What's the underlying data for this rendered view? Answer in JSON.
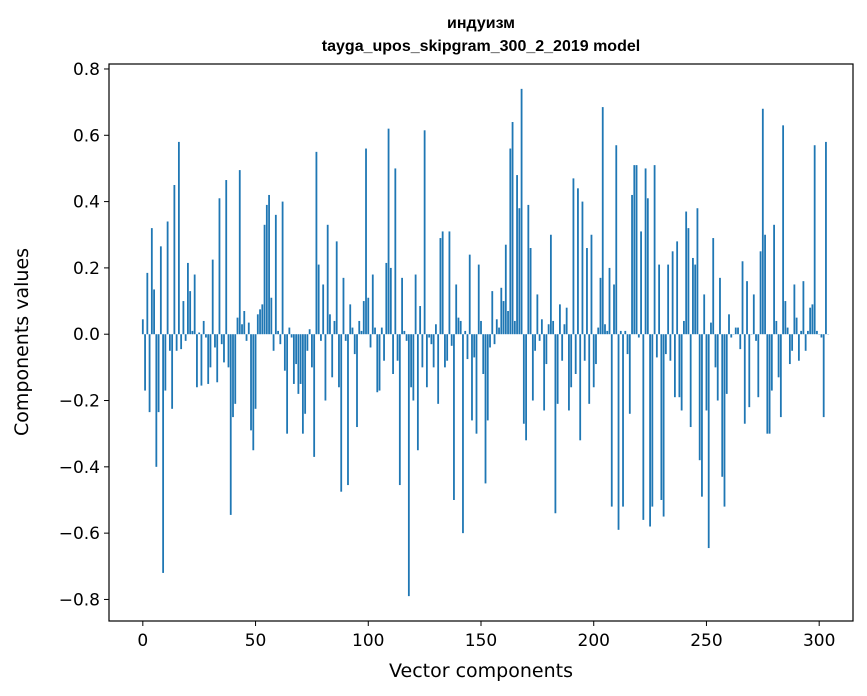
{
  "chart_data": {
    "type": "bar",
    "title": "индуизм",
    "subtitle": "tayga_upos_skipgram_300_2_2019 model",
    "xlabel": "Vector components",
    "ylabel": "Components values",
    "xlim": [
      -15,
      315
    ],
    "ylim": [
      -0.865,
      0.815
    ],
    "xticks": [
      0,
      50,
      100,
      150,
      200,
      250,
      300
    ],
    "xtick_labels": [
      "0",
      "50",
      "100",
      "150",
      "200",
      "250",
      "300"
    ],
    "yticks": [
      -0.8,
      -0.6,
      -0.4,
      -0.2,
      0.0,
      0.2,
      0.4,
      0.6,
      0.8
    ],
    "ytick_labels": [
      "−0.8",
      "−0.6",
      "−0.4",
      "−0.2",
      "0.0",
      "0.2",
      "0.4",
      "0.6",
      "0.8"
    ],
    "bar_color": "#1f77b4",
    "grid": false,
    "values": [
      0.045,
      -0.17,
      0.185,
      -0.235,
      0.32,
      0.135,
      -0.4,
      -0.235,
      0.265,
      -0.72,
      -0.17,
      0.34,
      -0.05,
      -0.225,
      0.45,
      -0.05,
      0.58,
      -0.045,
      0.1,
      -0.02,
      0.215,
      0.13,
      0.01,
      0.18,
      -0.16,
      0.005,
      -0.155,
      0.04,
      -0.01,
      -0.15,
      -0.1,
      0.225,
      -0.04,
      -0.145,
      0.41,
      -0.03,
      -0.085,
      0.465,
      -0.1,
      -0.545,
      -0.25,
      -0.21,
      0.05,
      0.495,
      0.03,
      0.07,
      -0.02,
      0.035,
      -0.29,
      -0.35,
      -0.225,
      0.06,
      0.075,
      0.09,
      0.33,
      0.39,
      0.42,
      0.11,
      -0.05,
      0.36,
      0.01,
      -0.03,
      0.4,
      -0.11,
      -0.3,
      0.02,
      -0.01,
      -0.15,
      -0.09,
      -0.18,
      -0.15,
      -0.3,
      -0.24,
      -0.05,
      0.015,
      -0.1,
      -0.37,
      0.55,
      0.21,
      -0.02,
      0.15,
      -0.2,
      0.33,
      0.06,
      -0.13,
      0.04,
      0.28,
      -0.16,
      -0.475,
      0.17,
      -0.02,
      -0.455,
      0.09,
      0.02,
      -0.06,
      -0.28,
      0.04,
      0.01,
      0.1,
      0.56,
      0.11,
      -0.04,
      0.18,
      0.02,
      -0.175,
      -0.17,
      0.02,
      -0.08,
      0.215,
      0.62,
      0.2,
      -0.12,
      0.5,
      -0.08,
      -0.455,
      0.17,
      0.01,
      -0.02,
      -0.79,
      -0.16,
      -0.2,
      0.18,
      -0.35,
      0.085,
      -0.1,
      0.615,
      -0.16,
      -0.01,
      -0.03,
      -0.1,
      0.03,
      -0.21,
      0.29,
      0.31,
      -0.1,
      -0.08,
      0.31,
      -0.035,
      -0.5,
      0.15,
      0.05,
      0.04,
      -0.6,
      0.01,
      -0.075,
      0.24,
      -0.26,
      -0.07,
      -0.3,
      0.21,
      0.04,
      -0.12,
      -0.45,
      -0.26,
      -0.04,
      0.13,
      -0.03,
      0.045,
      0.02,
      0.14,
      0.1,
      0.27,
      0.07,
      0.56,
      0.64,
      0.04,
      0.48,
      0.38,
      0.74,
      -0.27,
      -0.32,
      0.39,
      0.26,
      -0.2,
      -0.05,
      0.12,
      -0.02,
      0.045,
      -0.23,
      -0.09,
      0.03,
      0.3,
      0.04,
      -0.54,
      -0.21,
      0.09,
      -0.08,
      0.03,
      0.08,
      -0.23,
      -0.16,
      0.47,
      -0.12,
      0.44,
      -0.32,
      0.4,
      -0.08,
      0.26,
      -0.21,
      0.3,
      -0.16,
      -0.09,
      0.02,
      0.17,
      0.685,
      0.03,
      0.01,
      0.2,
      -0.52,
      0.15,
      0.57,
      -0.59,
      0.01,
      -0.52,
      0.01,
      -0.06,
      -0.24,
      0.42,
      0.51,
      0.51,
      -0.01,
      0.31,
      -0.56,
      0.5,
      0.41,
      -0.58,
      -0.52,
      0.51,
      -0.07,
      0.21,
      -0.5,
      -0.55,
      -0.06,
      0.21,
      -0.08,
      0.25,
      -0.19,
      0.28,
      -0.19,
      -0.23,
      0.04,
      0.37,
      0.32,
      -0.28,
      0.23,
      0.21,
      0.38,
      -0.38,
      -0.49,
      0.12,
      -0.23,
      -0.645,
      0.035,
      0.29,
      -0.1,
      -0.2,
      0.17,
      -0.43,
      -0.52,
      -0.18,
      0.06,
      -0.01,
      0.0,
      0.02,
      0.02,
      -0.045,
      0.22,
      -0.27,
      0.16,
      -0.22,
      0.0,
      0.12,
      -0.02,
      -0.19,
      0.25,
      0.68,
      0.3,
      -0.3,
      -0.3,
      -0.17,
      0.33,
      0.04,
      -0.13,
      -0.25,
      0.63,
      0.1,
      0.02,
      -0.09,
      -0.05,
      0.15,
      0.05,
      -0.08,
      0.01,
      0.16,
      -0.05,
      0.01,
      0.08,
      0.09,
      0.57,
      0.01,
      0.0,
      -0.01,
      -0.25,
      0.58,
      0.0
    ]
  }
}
